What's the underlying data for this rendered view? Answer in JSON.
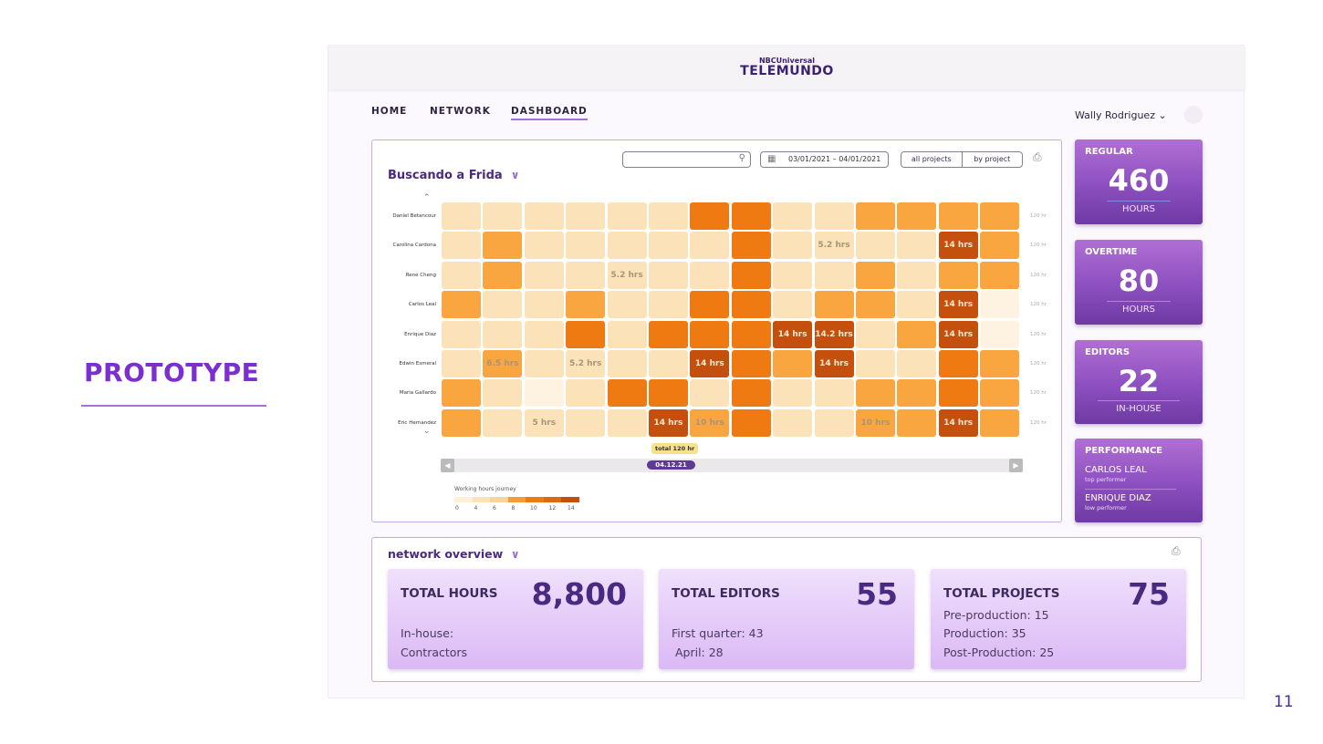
{
  "slide": {
    "label": "PROTOTYPE",
    "page_number": "11"
  },
  "header": {
    "brand_small": "NBCUniversal",
    "brand": "TELEMUNDO"
  },
  "nav": {
    "items": [
      "HOME",
      "NETWORK",
      "DASHBOARD"
    ],
    "active": "DASHBOARD"
  },
  "user": {
    "name": "Wally Rodriguez ⌄"
  },
  "heatmap": {
    "project": "Buscando a Frida",
    "search_placeholder": "",
    "date_range": "03/01/2021 – 04/01/2021",
    "toggle": [
      "all projects",
      "by project"
    ],
    "total_tag": "total 120 hr",
    "current_date": "04.12.21",
    "row_total": "120 hr",
    "names": [
      "Daniel Betancour",
      "Carolina Cardona",
      "Rene Cheng",
      "Carlos Leal",
      "Enrique Diaz",
      "Edwin Esmeral",
      "Maria Gallardo",
      "Eric Hernandez"
    ],
    "levels": [
      [
        1,
        1,
        1,
        1,
        1,
        1,
        4,
        4,
        1,
        1,
        3,
        3,
        3,
        3
      ],
      [
        1,
        3,
        1,
        1,
        1,
        1,
        1,
        4,
        1,
        1,
        1,
        1,
        5,
        3
      ],
      [
        1,
        3,
        1,
        1,
        1,
        1,
        1,
        4,
        1,
        1,
        3,
        1,
        3,
        3
      ],
      [
        3,
        1,
        1,
        3,
        1,
        1,
        4,
        4,
        1,
        3,
        3,
        1,
        5,
        0
      ],
      [
        1,
        1,
        1,
        4,
        1,
        4,
        4,
        4,
        5,
        5,
        1,
        3,
        5,
        0
      ],
      [
        1,
        3,
        1,
        1,
        1,
        1,
        5,
        4,
        3,
        5,
        1,
        1,
        4,
        3
      ],
      [
        3,
        1,
        0,
        1,
        4,
        4,
        1,
        4,
        1,
        1,
        3,
        3,
        4,
        3
      ],
      [
        3,
        1,
        1,
        1,
        1,
        5,
        3,
        4,
        1,
        1,
        3,
        3,
        5,
        3
      ]
    ],
    "labels": [
      [
        "",
        "",
        "",
        "",
        "",
        "",
        "",
        "",
        "",
        "",
        "",
        "",
        "",
        ""
      ],
      [
        "",
        "",
        "",
        "",
        "",
        "",
        "",
        "",
        "",
        "5.2 hrs",
        "",
        "",
        "14 hrs",
        ""
      ],
      [
        "",
        "",
        "",
        "",
        "5.2 hrs",
        "",
        "",
        "",
        "",
        "",
        "",
        "",
        "",
        ""
      ],
      [
        "",
        "",
        "",
        "",
        "",
        "",
        "",
        "",
        "",
        "",
        "",
        "",
        "14 hrs",
        ""
      ],
      [
        "",
        "",
        "",
        "",
        "",
        "",
        "",
        "",
        "14 hrs",
        "14.2 hrs",
        "",
        "",
        "14 hrs",
        ""
      ],
      [
        "",
        "6.5 hrs",
        "",
        "5.2 hrs",
        "",
        "",
        "14 hrs",
        "",
        "",
        "14 hrs",
        "",
        "",
        "",
        ""
      ],
      [
        "",
        "",
        "",
        "",
        "",
        "",
        "",
        "",
        "",
        "",
        "",
        "",
        "",
        ""
      ],
      [
        "",
        "",
        "5 hrs",
        "",
        "",
        "14 hrs",
        "10 hrs",
        "",
        "",
        "",
        "10 hrs",
        "",
        "14 hrs",
        ""
      ]
    ],
    "level_colors": [
      "#fdf3e0",
      "#fbe2b8",
      "#f9d7a0",
      "#f9a540",
      "#f07a12",
      "#c5500e"
    ],
    "legend": {
      "title": "Working hours journey",
      "ticks": [
        "0",
        "4",
        "6",
        "8",
        "10",
        "12",
        "14"
      ]
    }
  },
  "stats": {
    "regular": {
      "label": "REGULAR",
      "value": "460",
      "unit": "HOURS"
    },
    "overtime": {
      "label": "OVERTIME",
      "value": "80",
      "unit": "HOURS"
    },
    "editors": {
      "label": "EDITORS",
      "value": "22",
      "unit": "IN-HOUSE"
    },
    "performance": {
      "label": "PERFORMANCE",
      "top": "CARLOS LEAL",
      "top_sub": "top performer",
      "low": "ENRIQUE DIAZ",
      "low_sub": "low performer"
    }
  },
  "network": {
    "title": "network overview",
    "cards": [
      {
        "title": "TOTAL HOURS",
        "value": "8,800",
        "lines": [
          "In-house:",
          "Contractors"
        ]
      },
      {
        "title": "TOTAL EDITORS",
        "value": "55",
        "lines": [
          "First quarter: 43",
          " April: 28"
        ]
      },
      {
        "title": "TOTAL PROJECTS",
        "value": "75",
        "lines": [
          "Pre-production: 15",
          "Production: 35",
          "Post-Production: 25"
        ]
      }
    ]
  }
}
